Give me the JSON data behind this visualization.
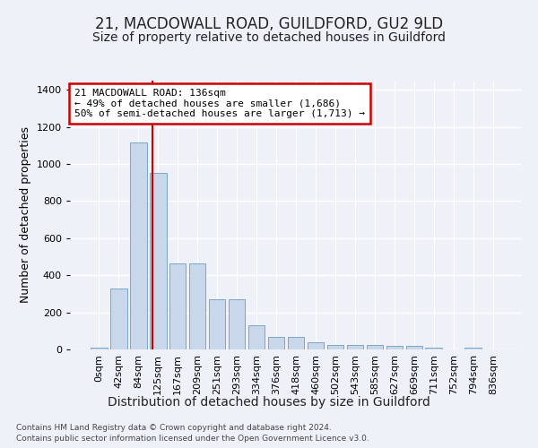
{
  "title": "21, MACDOWALL ROAD, GUILDFORD, GU2 9LD",
  "subtitle": "Size of property relative to detached houses in Guildford",
  "xlabel": "Distribution of detached houses by size in Guildford",
  "ylabel": "Number of detached properties",
  "footer_line1": "Contains HM Land Registry data © Crown copyright and database right 2024.",
  "footer_line2": "Contains public sector information licensed under the Open Government Licence v3.0.",
  "bar_labels": [
    "0sqm",
    "42sqm",
    "84sqm",
    "125sqm",
    "167sqm",
    "209sqm",
    "251sqm",
    "293sqm",
    "334sqm",
    "376sqm",
    "418sqm",
    "460sqm",
    "502sqm",
    "543sqm",
    "585sqm",
    "627sqm",
    "669sqm",
    "711sqm",
    "752sqm",
    "794sqm",
    "836sqm"
  ],
  "bar_values": [
    8,
    328,
    1115,
    950,
    462,
    462,
    272,
    272,
    130,
    68,
    68,
    38,
    25,
    25,
    25,
    18,
    18,
    8,
    0,
    8,
    0
  ],
  "bar_color": "#c8d8ea",
  "bar_edgecolor": "#6a9ec0",
  "annotation_text": "21 MACDOWALL ROAD: 136sqm\n← 49% of detached houses are smaller (1,686)\n50% of semi-detached houses are larger (1,713) →",
  "annotation_box_color": "#ffffff",
  "annotation_box_edgecolor": "#cc0000",
  "vline_color": "#cc0000",
  "vline_x_index": 3,
  "ylim": [
    0,
    1450
  ],
  "yticks": [
    0,
    200,
    400,
    600,
    800,
    1000,
    1200,
    1400
  ],
  "background_color": "#eef2f8",
  "grid_color": "#ffffff",
  "title_fontsize": 12,
  "subtitle_fontsize": 10,
  "xlabel_fontsize": 10,
  "ylabel_fontsize": 9,
  "tick_fontsize": 8,
  "annotation_fontsize": 8
}
